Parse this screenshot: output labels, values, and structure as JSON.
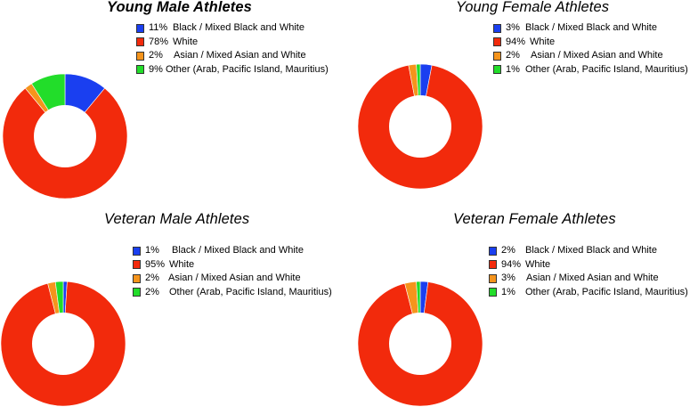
{
  "chart_data": [
    {
      "type": "pie",
      "title": "Young Male Athletes",
      "labels": [
        "Black / Mixed Black and White",
        "White",
        "Asian / Mixed Asian and White",
        "Other (Arab, Pacific Island, Mauritius)"
      ],
      "pct_labels": [
        "11%",
        "78%",
        "2%",
        "9%"
      ],
      "values": [
        11,
        78,
        2,
        9
      ],
      "colors": [
        "#1a3ff0",
        "#f22a0c",
        "#f5941c",
        "#22dd2a"
      ],
      "hole": true
    },
    {
      "type": "pie",
      "title": "Young Female Athletes",
      "labels": [
        "Black / Mixed Black and White",
        "White",
        "Asian / Mixed Asian and White",
        "Other (Arab, Pacific Island, Mauritius)"
      ],
      "pct_labels": [
        "3%",
        "94%",
        "2%",
        "1%"
      ],
      "values": [
        3,
        94,
        2,
        1
      ],
      "colors": [
        "#1a3ff0",
        "#f22a0c",
        "#f5941c",
        "#22dd2a"
      ],
      "hole": true
    },
    {
      "type": "pie",
      "title": "Veteran Male Athletes",
      "labels": [
        "Black / Mixed Black and White",
        "White",
        "Asian / Mixed Asian and White",
        "Other (Arab, Pacific Island, Mauritius)"
      ],
      "pct_labels": [
        "1%",
        "95%",
        "2%",
        "2%"
      ],
      "values": [
        1,
        95,
        2,
        2
      ],
      "colors": [
        "#1a3ff0",
        "#f22a0c",
        "#f5941c",
        "#22dd2a"
      ],
      "hole": true
    },
    {
      "type": "pie",
      "title": "Veteran Female Athletes",
      "labels": [
        "Black / Mixed Black and White",
        "White",
        "Asian / Mixed Asian and White",
        "Other (Arab, Pacific Island, Mauritius)"
      ],
      "pct_labels": [
        "2%",
        "94%",
        "3%",
        "1%"
      ],
      "values": [
        2,
        94,
        3,
        1
      ],
      "colors": [
        "#1a3ff0",
        "#f22a0c",
        "#f5941c",
        "#22dd2a"
      ],
      "hole": true
    }
  ]
}
